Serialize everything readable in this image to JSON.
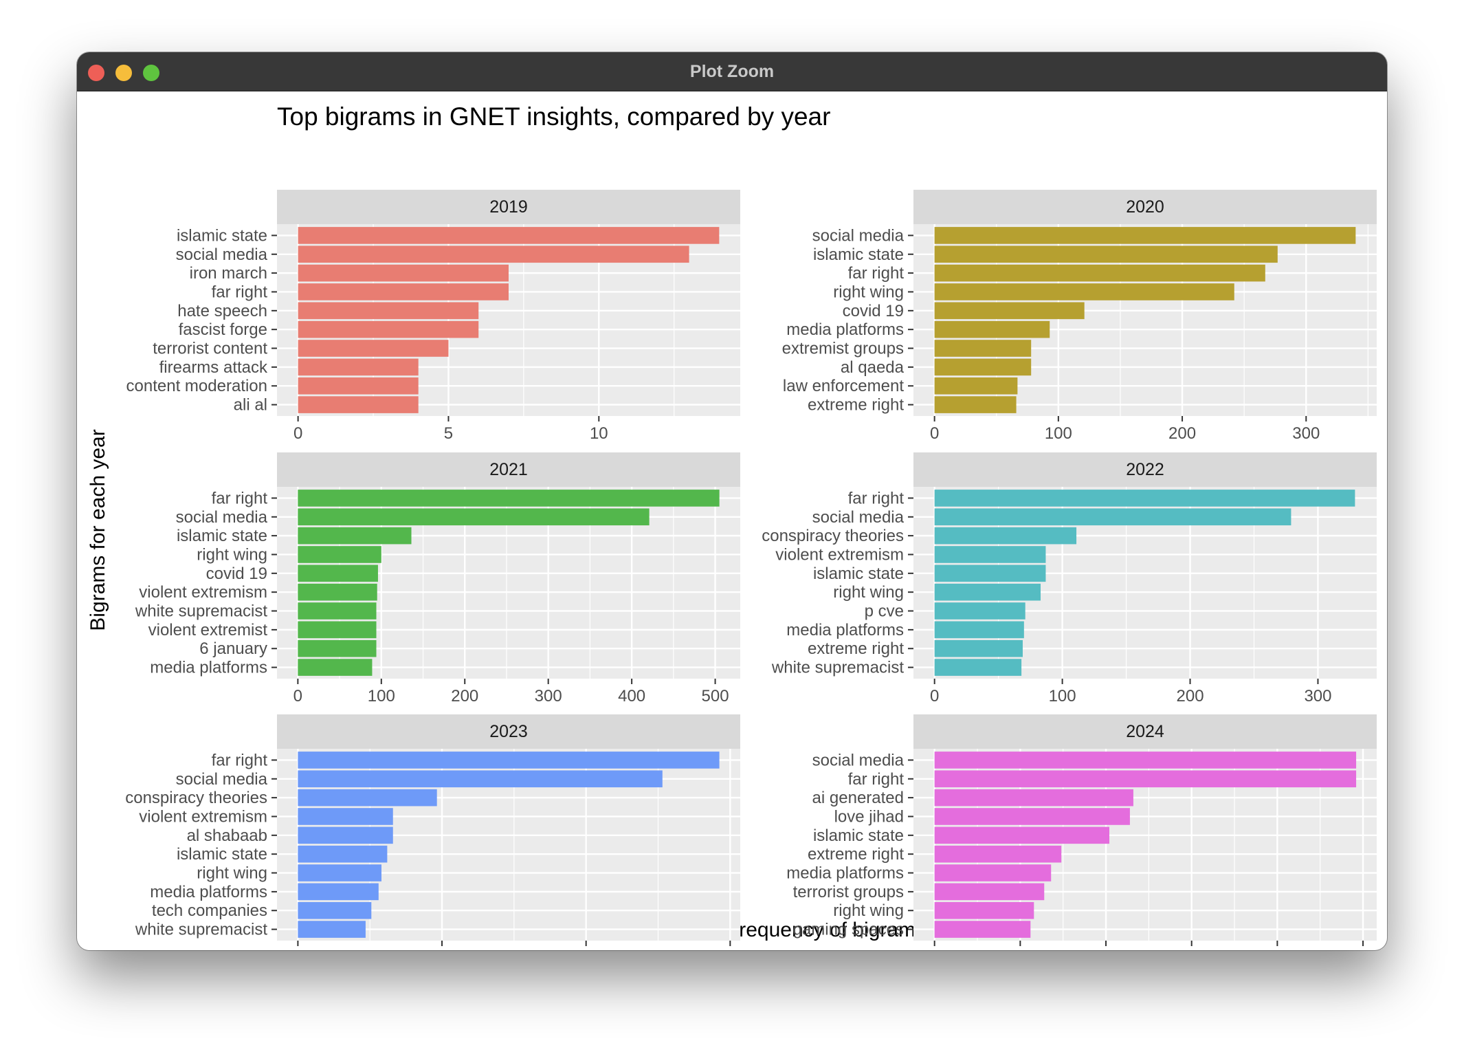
{
  "window": {
    "title": "Plot Zoom"
  },
  "chart_data": {
    "type": "bar",
    "orientation": "horizontal",
    "title": "Top bigrams in GNET insights, compared by year",
    "xlabel": "Frequency of bigrams",
    "ylabel": "Bigrams for each year",
    "grid": true,
    "facets": [
      {
        "year": "2019",
        "color": "#E87D72",
        "xlim": [
          -0.7,
          14.7
        ],
        "ticks": [
          0,
          5,
          10
        ],
        "categories": [
          "islamic state",
          "social media",
          "iron march",
          "far right",
          "hate speech",
          "fascist forge",
          "terrorist content",
          "firearms attack",
          "content moderation",
          "ali al"
        ],
        "values": [
          14,
          13,
          7,
          7,
          6,
          6,
          5,
          4,
          4,
          4
        ]
      },
      {
        "year": "2020",
        "color": "#B6A030",
        "xlim": [
          -17,
          357
        ],
        "ticks": [
          0,
          100,
          200,
          300
        ],
        "categories": [
          "social media",
          "islamic state",
          "far right",
          "right wing",
          "covid 19",
          "media platforms",
          "extremist groups",
          "al qaeda",
          "law enforcement",
          "extreme right"
        ],
        "values": [
          340,
          277,
          267,
          242,
          121,
          93,
          78,
          78,
          67,
          66
        ]
      },
      {
        "year": "2021",
        "color": "#53B74C",
        "xlim": [
          -25,
          530
        ],
        "ticks": [
          0,
          100,
          200,
          300,
          400,
          500
        ],
        "categories": [
          "far right",
          "social media",
          "islamic state",
          "right wing",
          "covid 19",
          "violent extremism",
          "white supremacist",
          "violent extremist",
          "6 january",
          "media platforms"
        ],
        "values": [
          505,
          421,
          136,
          100,
          96,
          95,
          94,
          94,
          94,
          89
        ]
      },
      {
        "year": "2022",
        "color": "#55BCC2",
        "xlim": [
          -16.5,
          346
        ],
        "ticks": [
          0,
          100,
          200,
          300
        ],
        "categories": [
          "far right",
          "social media",
          "conspiracy theories",
          "violent extremism",
          "islamic state",
          "right wing",
          "p cve",
          "media platforms",
          "extreme right",
          "white supremacist"
        ],
        "values": [
          329,
          279,
          111,
          87,
          87,
          83,
          71,
          70,
          69,
          68
        ]
      },
      {
        "year": "2023",
        "color": "#6E9AF8",
        "xlim": [
          -29,
          614
        ],
        "ticks": [
          0,
          200,
          400,
          600
        ],
        "categories": [
          "far right",
          "social media",
          "conspiracy theories",
          "violent extremism",
          "al shabaab",
          "islamic state",
          "right wing",
          "media platforms",
          "tech companies",
          "white supremacist"
        ],
        "values": [
          585,
          506,
          193,
          132,
          132,
          124,
          116,
          112,
          102,
          94
        ]
      },
      {
        "year": "2024",
        "color": "#E46DDD",
        "xlim": [
          -6.15,
          129
        ],
        "ticks": [
          0,
          25,
          50,
          75,
          100,
          125
        ],
        "categories": [
          "social media",
          "far right",
          "ai generated",
          "love jihad",
          "islamic state",
          "extreme right",
          "media platforms",
          "terrorist groups",
          "right wing",
          "gaming spaces"
        ],
        "values": [
          123,
          123,
          58,
          57,
          51,
          37,
          34,
          32,
          29,
          28
        ]
      }
    ]
  }
}
